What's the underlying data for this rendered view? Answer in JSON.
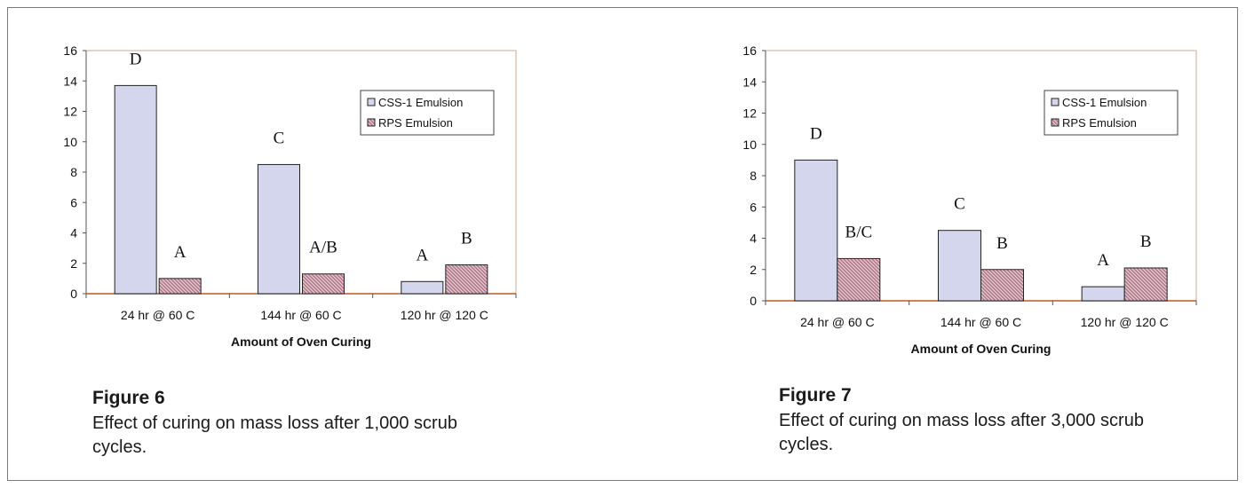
{
  "chart_data": [
    {
      "type": "bar",
      "categories": [
        "24 hr @ 60 C",
        "144 hr @ 60 C",
        "120 hr @ 120 C"
      ],
      "series": [
        {
          "name": "CSS-1 Emulsion",
          "values": [
            13.7,
            8.5,
            0.8
          ],
          "labels": [
            "D",
            "C",
            "A"
          ]
        },
        {
          "name": "RPS Emulsion",
          "values": [
            1.0,
            1.3,
            1.9
          ],
          "labels": [
            "A",
            "A/B",
            "B"
          ]
        }
      ],
      "xlabel": "Amount of Oven Curing",
      "ylabel": "",
      "ylim": [
        0,
        16
      ],
      "yticks": [
        "0",
        "2",
        "4",
        "6",
        "8",
        "10",
        "12",
        "14",
        "16"
      ],
      "legend": "top-right",
      "grid": false
    },
    {
      "type": "bar",
      "categories": [
        "24 hr @ 60 C",
        "144 hr @ 60 C",
        "120 hr @ 120 C"
      ],
      "series": [
        {
          "name": "CSS-1 Emulsion",
          "values": [
            9.0,
            4.5,
            0.9
          ],
          "labels": [
            "D",
            "C",
            "A"
          ]
        },
        {
          "name": "RPS Emulsion",
          "values": [
            2.7,
            2.0,
            2.1
          ],
          "labels": [
            "B/C",
            "B",
            "B"
          ]
        }
      ],
      "xlabel": "Amount of Oven Curing",
      "ylabel": "",
      "ylim": [
        0,
        16
      ],
      "yticks": [
        "0",
        "2",
        "4",
        "6",
        "8",
        "10",
        "12",
        "14",
        "16"
      ],
      "legend": "top-right",
      "grid": false
    }
  ],
  "colors": {
    "css1_fill": "#d4d6ee",
    "rps_fill": "#b9798c",
    "rps_hatch": "#ead9df",
    "bar_stroke": "#222222",
    "plot_border": "#c8a89a"
  },
  "captions": {
    "fig6_title": "Figure 6",
    "fig6_text": "Effect of curing on mass loss after 1,000 scrub cycles.",
    "fig7_title": "Figure 7",
    "fig7_text": "Effect of curing on mass loss after 3,000 scrub cycles."
  }
}
